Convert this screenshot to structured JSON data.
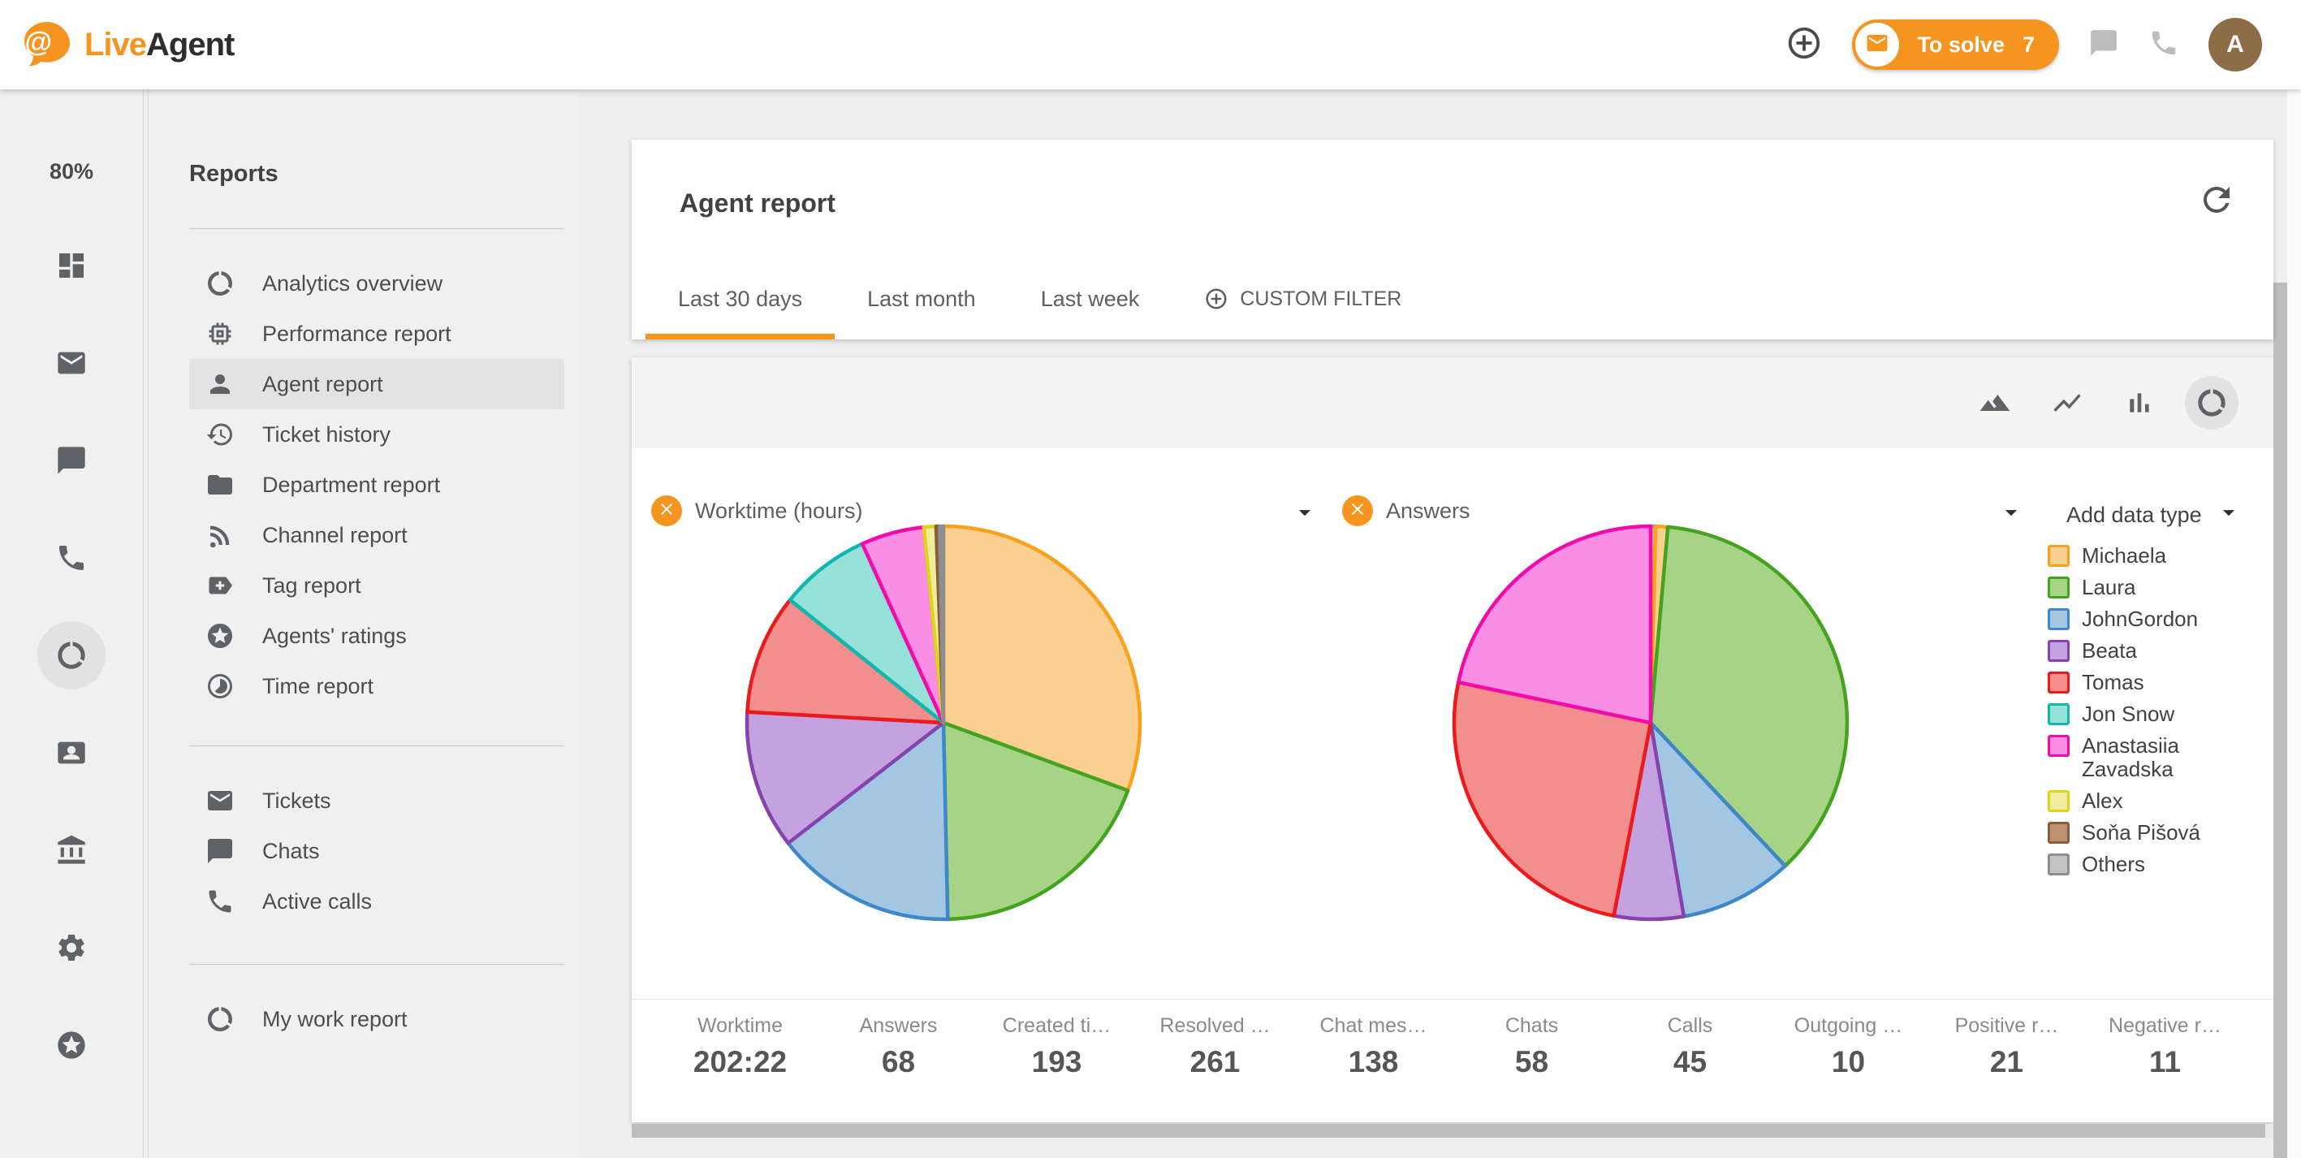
{
  "colors": {
    "accent": "#F5941F",
    "avatar_bg": "#8C6D46"
  },
  "header": {
    "brand": {
      "live": "Live",
      "agent": "Agent"
    },
    "to_solve": {
      "label": "To solve",
      "count": "7"
    },
    "avatar_letter": "A"
  },
  "rail": {
    "zoom_level": "80%",
    "icons": [
      {
        "name": "dashboard"
      },
      {
        "name": "mail"
      },
      {
        "name": "chat"
      },
      {
        "name": "phone"
      },
      {
        "name": "pie-chart",
        "active": true
      },
      {
        "name": "contact-card"
      },
      {
        "name": "bank"
      },
      {
        "name": "gear"
      },
      {
        "name": "stars"
      }
    ]
  },
  "menu": {
    "title": "Reports",
    "groups": [
      [
        {
          "icon": "pie-chart",
          "label": "Analytics overview"
        },
        {
          "icon": "memory",
          "label": "Performance report"
        },
        {
          "icon": "person",
          "label": "Agent report",
          "active": true
        },
        {
          "icon": "history",
          "label": "Ticket history"
        },
        {
          "icon": "folder",
          "label": "Department report"
        },
        {
          "icon": "rss",
          "label": "Channel report"
        },
        {
          "icon": "tag",
          "label": "Tag report"
        },
        {
          "icon": "stars",
          "label": "Agents' ratings"
        },
        {
          "icon": "timelapse",
          "label": "Time report"
        }
      ],
      [
        {
          "icon": "mail",
          "label": "Tickets"
        },
        {
          "icon": "chat",
          "label": "Chats"
        },
        {
          "icon": "phone",
          "label": "Active calls"
        }
      ],
      [
        {
          "icon": "pie-chart",
          "label": "My work report"
        }
      ]
    ]
  },
  "page": {
    "title": "Agent report"
  },
  "tabs": {
    "items": [
      {
        "label": "Last 30 days",
        "active": true
      },
      {
        "label": "Last month"
      },
      {
        "label": "Last week"
      }
    ],
    "custom_filter": "CUSTOM FILTER"
  },
  "toolbar": {
    "icons": [
      {
        "name": "area-chart"
      },
      {
        "name": "line-chart"
      },
      {
        "name": "bar-chart"
      },
      {
        "name": "pie-chart",
        "active": true
      }
    ]
  },
  "add_data_type_label": "Add data type",
  "legend": {
    "agents": [
      {
        "name": "Michaela",
        "fill": "#FACF90",
        "stroke": "#F9A11B"
      },
      {
        "name": "Laura",
        "fill": "#A6D385",
        "stroke": "#44A41F"
      },
      {
        "name": "JohnGordon",
        "fill": "#A3C6E3",
        "stroke": "#3E87C8"
      },
      {
        "name": "Beata",
        "fill": "#C4A1DF",
        "stroke": "#8643AE"
      },
      {
        "name": "Tomas",
        "fill": "#F28E8E",
        "stroke": "#EB1B1B"
      },
      {
        "name": "Jon Snow",
        "fill": "#97E2D8",
        "stroke": "#0FB8AE"
      },
      {
        "name": "Anastasiia Zavadska",
        "fill": "#FA8DE4",
        "stroke": "#F20BA9"
      },
      {
        "name": "Alex",
        "fill": "#F0EC9D",
        "stroke": "#DFD41D"
      },
      {
        "name": "Soňa Pišová",
        "fill": "#BD9273",
        "stroke": "#8A5C3C"
      },
      {
        "name": "Others",
        "fill": "#C4C4C4",
        "stroke": "#8E8E8E"
      }
    ]
  },
  "chart_data": [
    {
      "type": "pie",
      "title": "Worktime (hours)",
      "total_shown": "202:22",
      "unit": "percent_share",
      "slices": [
        {
          "name": "Michaela",
          "value": 30.7
        },
        {
          "name": "Laura",
          "value": 19.1
        },
        {
          "name": "JohnGordon",
          "value": 14.9
        },
        {
          "name": "Beata",
          "value": 11.4
        },
        {
          "name": "Tomas",
          "value": 9.9
        },
        {
          "name": "Jon Snow",
          "value": 7.5
        },
        {
          "name": "Anastasiia Zavadska",
          "value": 5.2
        },
        {
          "name": "Alex",
          "value": 1.0
        },
        {
          "name": "Soňa Pišová",
          "value": 0.3
        },
        {
          "name": "Others",
          "value": 0.3
        }
      ]
    },
    {
      "type": "pie",
      "title": "Answers",
      "total_shown": "68",
      "unit": "percent_share",
      "slices": [
        {
          "name": "Others",
          "value": 0.4
        },
        {
          "name": "Michaela",
          "value": 1.0
        },
        {
          "name": "Laura",
          "value": 36.6
        },
        {
          "name": "JohnGordon",
          "value": 9.3
        },
        {
          "name": "Beata",
          "value": 5.7
        },
        {
          "name": "Tomas",
          "value": 25.3
        },
        {
          "name": "Anastasiia Zavadska",
          "value": 21.7
        }
      ]
    }
  ],
  "stats": [
    {
      "label": "Worktime",
      "value": "202:22"
    },
    {
      "label": "Answers",
      "value": "68"
    },
    {
      "label": "Created ti…",
      "value": "193"
    },
    {
      "label": "Resolved …",
      "value": "261"
    },
    {
      "label": "Chat mes…",
      "value": "138"
    },
    {
      "label": "Chats",
      "value": "58"
    },
    {
      "label": "Calls",
      "value": "45"
    },
    {
      "label": "Outgoing …",
      "value": "10"
    },
    {
      "label": "Positive r…",
      "value": "21"
    },
    {
      "label": "Negative r…",
      "value": "11"
    }
  ]
}
